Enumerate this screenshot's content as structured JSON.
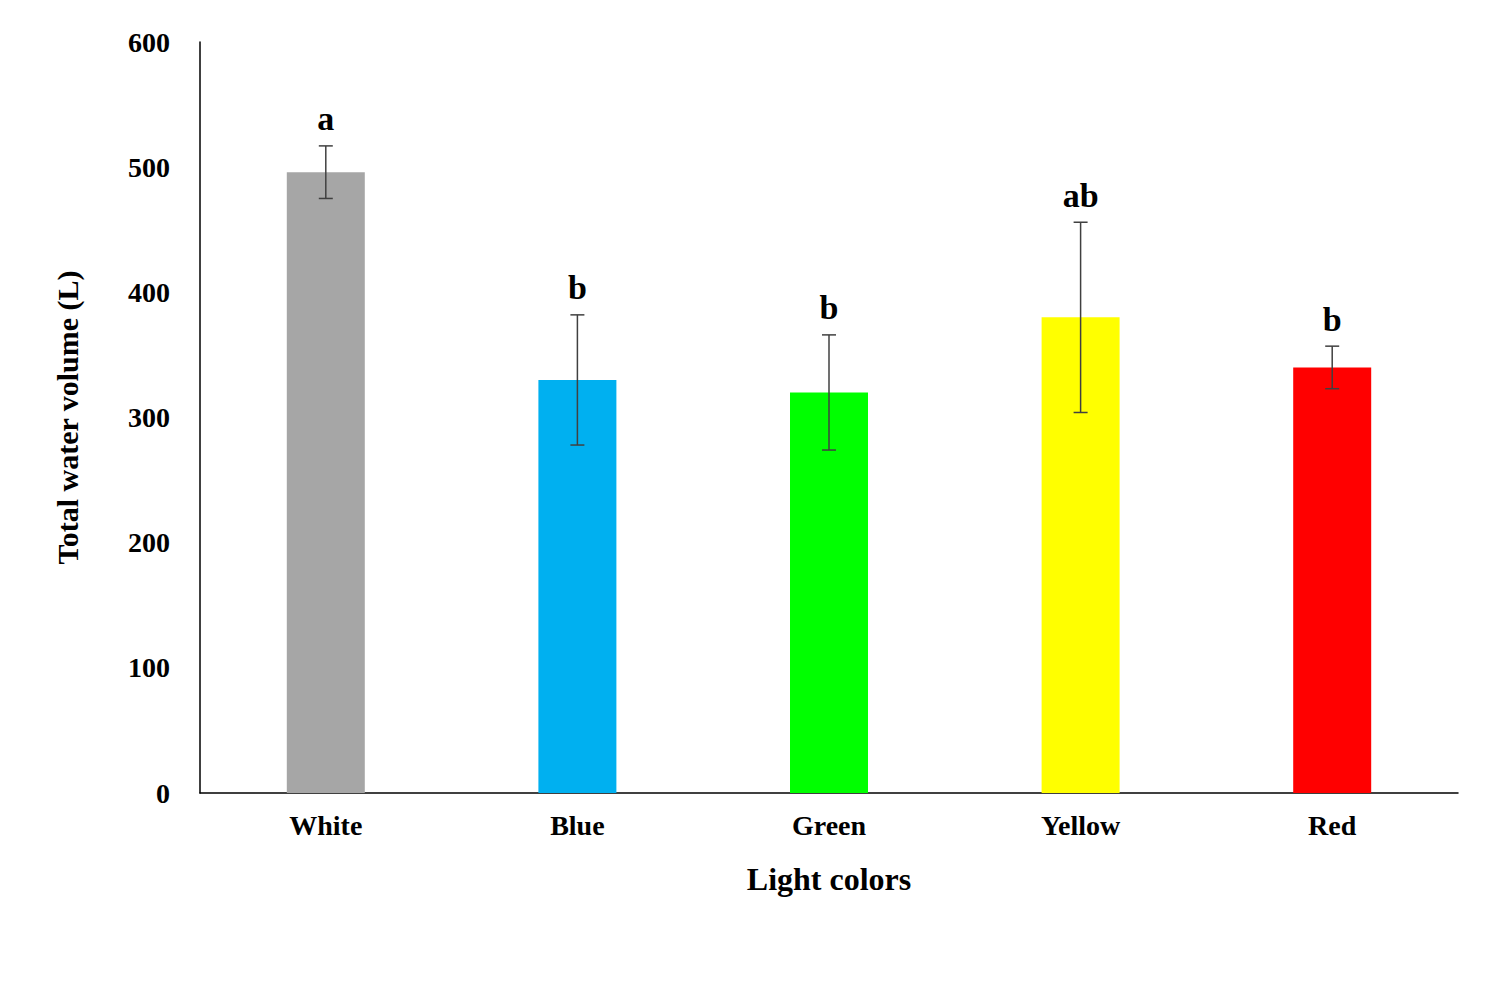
{
  "chart_data": {
    "type": "bar",
    "x_label": "Light colors",
    "y_label": "Total water volume (L)",
    "categories": [
      "White",
      "Blue",
      "Green",
      "Yellow",
      "Red"
    ],
    "values": [
      496,
      330,
      320,
      380,
      340
    ],
    "errors": [
      21,
      52,
      46,
      76,
      17
    ],
    "annotations": [
      "a",
      "b",
      "b",
      "ab",
      "b"
    ],
    "colors": [
      "#a6a6a6",
      "#00b0f0",
      "#00ff00",
      "#ffff00",
      "#ff0000"
    ],
    "ylim": [
      0,
      600
    ],
    "yticks": [
      0,
      100,
      200,
      300,
      400,
      500,
      600
    ],
    "grid": false
  }
}
